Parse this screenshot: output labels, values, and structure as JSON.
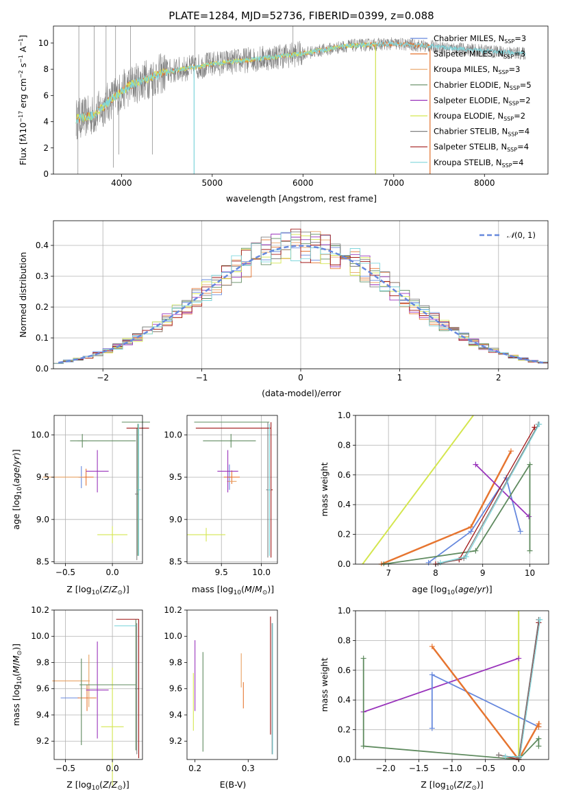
{
  "figure_title": "PLATE=1284, MJD=52736, FIBERID=0399, z=0.088",
  "colors": {
    "Chabrier MILES": "#6688dd",
    "Salpeter MILES": "#e67530",
    "Kroupa MILES": "#e8a060",
    "Chabrier ELODIE": "#5e8a5e",
    "Salpeter ELODIE": "#9933bb",
    "Kroupa ELODIE": "#d4e64f",
    "Chabrier STELIB": "#808080",
    "Salpeter STELIB": "#a01616",
    "Kroupa STELIB": "#7fd6dc",
    "gauss": "#6688dd"
  },
  "chart_data": [
    {
      "id": "spectrum",
      "type": "line",
      "xlabel": "wavelength [Angstrom, rest frame]",
      "ylabel": "Flux [f",
      "xlim": [
        3250,
        8700
      ],
      "ylim": [
        0,
        11.3
      ],
      "xticks": [
        4000,
        5000,
        6000,
        7000,
        8000
      ],
      "yticks": [
        0,
        2,
        4,
        6,
        8,
        10
      ],
      "grid": false,
      "legend_position": "upper right",
      "continuum": {
        "x": [
          3500,
          3700,
          3900,
          4100,
          4500,
          5000,
          5500,
          6000,
          6500,
          7000,
          7400,
          8000,
          8450
        ],
        "y": [
          4.2,
          4.5,
          5.8,
          6.8,
          7.8,
          8.4,
          8.8,
          9.2,
          9.8,
          9.95,
          9.75,
          9.4,
          9.2
        ]
      },
      "series": [
        {
          "name": "Chabrier MILES, N",
          "ssp": "=3"
        },
        {
          "name": "Salpeter MILES, N",
          "ssp": "=3"
        },
        {
          "name": "Kroupa MILES, N",
          "ssp": "=3"
        },
        {
          "name": "Chabrier ELODIE, N",
          "ssp": "=5"
        },
        {
          "name": "Salpeter ELODIE, N",
          "ssp": "=2"
        },
        {
          "name": "Kroupa ELODIE, N",
          "ssp": "=2"
        },
        {
          "name": "Chabrier STELIB, N",
          "ssp": "=4"
        },
        {
          "name": "Salpeter STELIB, N",
          "ssp": "=4"
        },
        {
          "name": "Kroupa STELIB, N",
          "ssp": "=4"
        }
      ]
    },
    {
      "id": "residuals",
      "type": "histogram",
      "xlabel": "(data-model)/error",
      "ylabel": "Normed distribution",
      "xlim": [
        -2.5,
        2.5
      ],
      "ylim": [
        0,
        0.48
      ],
      "xticks": [
        -2,
        -1,
        0,
        1,
        2
      ],
      "yticks": [
        0.0,
        0.1,
        0.2,
        0.3,
        0.4
      ],
      "grid": true,
      "legend_position": "upper right",
      "legend_label": "(0, 1)",
      "bin_width": 0.1,
      "bins_start": -2.5
    },
    {
      "id": "age_vs_Z",
      "type": "errorbar",
      "xlabel": "Z [log",
      "ylabel": "age  [log",
      "xlim": [
        -0.62,
        0.32
      ],
      "ylim": [
        8.48,
        10.23
      ],
      "xticks": [
        -0.5,
        0.0
      ],
      "yticks": [
        8.5,
        9.0,
        9.5,
        10.0
      ],
      "grid": true,
      "points": [
        {
          "s": "Chabrier MILES",
          "x": -0.33,
          "y": 9.5,
          "xerr": 0.03,
          "yerr": 0.13
        },
        {
          "s": "Salpeter MILES",
          "x": -0.28,
          "y": 9.5,
          "xerr": 0.08,
          "yerr": 0.1
        },
        {
          "s": "Kroupa MILES",
          "x": -0.52,
          "y": 9.5,
          "xerr": 0.22,
          "yerr": 0.0
        },
        {
          "s": "Chabrier ELODIE",
          "x": -0.32,
          "y": 9.93,
          "xerr": 0.05,
          "yerr": 0.08
        },
        {
          "s": "Salpeter ELODIE",
          "x": -0.16,
          "y": 9.57,
          "xerr": 0.12,
          "yerr": 0.25
        },
        {
          "s": "Kroupa ELODIE",
          "x": -0.0,
          "y": 8.82,
          "xerr": 0.16,
          "yerr": 0.1
        },
        {
          "s": "Chabrier STELIB",
          "x": 0.26,
          "y": 9.3,
          "xerr": 0.02,
          "yerr": 0.78
        },
        {
          "s": "Salpeter STELIB",
          "x": 0.27,
          "y": 10.08,
          "xerr": 0.12,
          "yerr": 0.0
        },
        {
          "s": "Kroupa STELIB",
          "x": 0.28,
          "y": 9.35,
          "xerr": 0.02,
          "yerr": 0.78
        },
        {
          "s": "Chabrier ELODIE",
          "x": 0.25,
          "y": 10.15,
          "xerr": 0.15,
          "yerr": 0.0
        },
        {
          "s": "Chabrier ELODIE",
          "x": -0.1,
          "y": 9.93,
          "xerr": 0.35,
          "yerr": 0.0
        },
        {
          "s": "Chabrier ELODIE",
          "x": 0.27,
          "y": 9.35,
          "xerr": 0.0,
          "yerr": 0.78
        }
      ]
    },
    {
      "id": "age_vs_mass",
      "type": "errorbar",
      "xlabel": "mass [log",
      "ylabel": "",
      "xlim": [
        9.07,
        10.2
      ],
      "ylim": [
        8.48,
        10.23
      ],
      "xticks": [
        9.5,
        10.0
      ],
      "yticks": [
        8.5,
        9.0,
        9.5,
        10.0
      ],
      "grid": true,
      "points": [
        {
          "s": "Chabrier MILES",
          "x": 9.6,
          "y": 9.5,
          "xerr": 0.02,
          "yerr": 0.15
        },
        {
          "s": "Salpeter MILES",
          "x": 9.63,
          "y": 9.5,
          "xerr": 0.1,
          "yerr": 0.08
        },
        {
          "s": "Kroupa MILES",
          "x": 9.63,
          "y": 9.45,
          "xerr": 0.06,
          "yerr": 0.0
        },
        {
          "s": "Chabrier ELODIE",
          "x": 9.62,
          "y": 9.93,
          "xerr": 0.02,
          "yerr": 0.08
        },
        {
          "s": "Salpeter ELODIE",
          "x": 9.58,
          "y": 9.57,
          "xerr": 0.13,
          "yerr": 0.25
        },
        {
          "s": "Kroupa ELODIE",
          "x": 9.31,
          "y": 8.82,
          "xerr": 0.24,
          "yerr": 0.08
        },
        {
          "s": "Chabrier STELIB",
          "x": 10.08,
          "y": 9.35,
          "xerr": 0.02,
          "yerr": 0.8
        },
        {
          "s": "Salpeter STELIB",
          "x": 10.12,
          "y": 9.35,
          "xerr": 0.02,
          "yerr": 0.8
        },
        {
          "s": "Salpeter STELIB",
          "x": 9.65,
          "y": 10.08,
          "xerr": 0.47,
          "yerr": 0.0
        },
        {
          "s": "Kroupa STELIB",
          "x": 10.1,
          "y": 9.35,
          "xerr": 0.02,
          "yerr": 0.78
        },
        {
          "s": "Chabrier ELODIE",
          "x": 9.63,
          "y": 10.15,
          "xerr": 0.47,
          "yerr": 0.0
        },
        {
          "s": "Chabrier ELODIE",
          "x": 9.6,
          "y": 9.93,
          "xerr": 0.33,
          "yerr": 0.0
        }
      ]
    },
    {
      "id": "weight_vs_age",
      "type": "line",
      "xlabel": "age  [log",
      "ylabel": "mass weight",
      "xlim": [
        6.3,
        10.4
      ],
      "ylim": [
        0,
        1
      ],
      "xticks": [
        7,
        8,
        9,
        10
      ],
      "yticks": [
        0.0,
        0.2,
        0.4,
        0.6,
        0.8,
        1.0
      ],
      "grid": true,
      "series": [
        {
          "s": "Kroupa ELODIE",
          "x": [
            6.45,
            8.8
          ],
          "y": [
            0.0,
            1.0
          ],
          "w": 2,
          "marker": false
        },
        {
          "s": "Salpeter MILES",
          "x": [
            6.85,
            8.75,
            9.6
          ],
          "y": [
            0.0,
            0.25,
            0.76
          ],
          "w": 2.5
        },
        {
          "s": "Chabrier MILES",
          "x": [
            7.85,
            8.75,
            9.5,
            9.8
          ],
          "y": [
            0.01,
            0.22,
            0.58,
            0.22
          ],
          "w": 1.8
        },
        {
          "s": "Salpeter ELODIE",
          "x": [
            8.85,
            9.98
          ],
          "y": [
            0.67,
            0.32
          ],
          "w": 1.8
        },
        {
          "s": "Chabrier ELODIE",
          "x": [
            6.9,
            8.85,
            10.0,
            10.0
          ],
          "y": [
            0.0,
            0.09,
            0.67,
            0.09
          ],
          "w": 1.8
        },
        {
          "s": "Salpeter STELIB",
          "x": [
            8.0,
            8.5,
            10.1
          ],
          "y": [
            0.0,
            0.03,
            0.92
          ],
          "w": 1.3
        },
        {
          "s": "Chabrier STELIB",
          "x": [
            8.05,
            8.6,
            10.18
          ],
          "y": [
            0.0,
            0.04,
            0.94
          ],
          "w": 1.3
        },
        {
          "s": "Kroupa STELIB",
          "x": [
            8.1,
            8.65,
            10.2
          ],
          "y": [
            0.01,
            0.05,
            0.94
          ],
          "w": 1.3
        }
      ]
    },
    {
      "id": "mass_vs_Z",
      "type": "errorbar",
      "xlabel": "Z [log",
      "ylabel": "mass [log",
      "xlim": [
        -0.62,
        0.32
      ],
      "ylim": [
        9.06,
        10.2
      ],
      "xticks": [
        -0.5,
        0.0
      ],
      "yticks": [
        9.2,
        9.4,
        9.6,
        9.8,
        10.0,
        10.2
      ],
      "grid": true,
      "points": [
        {
          "s": "Chabrier MILES",
          "x": -0.45,
          "y": 9.53,
          "xerr": 0.1,
          "yerr": 0.0
        },
        {
          "s": "Salpeter MILES",
          "x": -0.27,
          "y": 9.53,
          "xerr": 0.1,
          "yerr": 0.1
        },
        {
          "s": "Kroupa MILES",
          "x": -0.44,
          "y": 9.66,
          "xerr": 0.2,
          "yerr": 0.0
        },
        {
          "s": "Kroupa MILES",
          "x": -0.25,
          "y": 9.66,
          "xerr": 0.0,
          "yerr": 0.2
        },
        {
          "s": "Chabrier ELODIE",
          "x": -0.33,
          "y": 9.5,
          "xerr": 0.0,
          "yerr": 0.33
        },
        {
          "s": "Salpeter ELODIE",
          "x": -0.16,
          "y": 9.59,
          "xerr": 0.12,
          "yerr": 0.37
        },
        {
          "s": "Kroupa ELODIE",
          "x": -0.0,
          "y": 9.31,
          "xerr": 0.12,
          "yerr": 0.45
        },
        {
          "s": "Chabrier STELIB",
          "x": 0.26,
          "y": 9.6,
          "xerr": 0.02,
          "yerr": 0.5
        },
        {
          "s": "Salpeter STELIB",
          "x": 0.16,
          "y": 10.13,
          "xerr": 0.12,
          "yerr": 0.0
        },
        {
          "s": "Salpeter STELIB",
          "x": 0.28,
          "y": 9.6,
          "xerr": 0.0,
          "yerr": 0.53
        },
        {
          "s": "Kroupa STELIB",
          "x": 0.14,
          "y": 10.08,
          "xerr": 0.12,
          "yerr": 0.0
        },
        {
          "s": "Chabrier ELODIE",
          "x": -0.05,
          "y": 9.63,
          "xerr": 0.3,
          "yerr": 0.0
        },
        {
          "s": "Chabrier ELODIE",
          "x": 0.25,
          "y": 9.63,
          "xerr": 0.0,
          "yerr": 0.5
        }
      ]
    },
    {
      "id": "mass_vs_EBV",
      "type": "errorbar",
      "xlabel": "E(B-V)",
      "ylabel": "",
      "xlim": [
        0.185,
        0.355
      ],
      "ylim": [
        9.06,
        10.2
      ],
      "xticks": [
        0.2,
        0.3
      ],
      "yticks": [
        9.2,
        9.4,
        9.6,
        9.8,
        10.0,
        10.2
      ],
      "grid": false,
      "points": [
        {
          "s": "Kroupa ELODIE",
          "x": 0.197,
          "y": 9.5,
          "xerr": 0.0,
          "yerr": 0.22
        },
        {
          "s": "Salpeter ELODIE",
          "x": 0.2,
          "y": 9.7,
          "xerr": 0.0,
          "yerr": 0.27
        },
        {
          "s": "Chabrier ELODIE",
          "x": 0.215,
          "y": 9.5,
          "xerr": 0.0,
          "yerr": 0.38
        },
        {
          "s": "Kroupa MILES",
          "x": 0.287,
          "y": 9.74,
          "xerr": 0.0,
          "yerr": 0.13
        },
        {
          "s": "Salpeter MILES",
          "x": 0.291,
          "y": 9.55,
          "xerr": 0.0,
          "yerr": 0.1
        },
        {
          "s": "Salpeter STELIB",
          "x": 0.342,
          "y": 9.7,
          "xerr": 0.0,
          "yerr": 0.45
        },
        {
          "s": "Chabrier STELIB",
          "x": 0.345,
          "y": 9.6,
          "xerr": 0.0,
          "yerr": 0.5
        },
        {
          "s": "Kroupa STELIB",
          "x": 0.346,
          "y": 9.6,
          "xerr": 0.0,
          "yerr": 0.5
        }
      ]
    },
    {
      "id": "weight_vs_Z",
      "type": "line",
      "xlabel": "Z [log",
      "ylabel": "mass weight",
      "xlim": [
        -2.45,
        0.45
      ],
      "ylim": [
        0,
        1
      ],
      "xticks": [
        -2.0,
        -1.5,
        -1.0,
        -0.5,
        0.0
      ],
      "yticks": [
        0.0,
        0.2,
        0.4,
        0.6,
        0.8,
        1.0
      ],
      "grid": true,
      "series": [
        {
          "s": "Kroupa ELODIE",
          "x": [
            0.0,
            0.0
          ],
          "y": [
            0.0,
            1.0
          ],
          "w": 2,
          "marker": false
        },
        {
          "s": "Salpeter ELODIE",
          "x": [
            -2.33,
            0.0
          ],
          "y": [
            0.32,
            0.68
          ],
          "w": 1.8
        },
        {
          "s": "Chabrier MILES",
          "x": [
            -1.3,
            -1.3,
            0.3
          ],
          "y": [
            0.21,
            0.57,
            0.22
          ],
          "w": 1.8
        },
        {
          "s": "Salpeter MILES",
          "x": [
            -1.3,
            0.0,
            0.3,
            0.3
          ],
          "y": [
            0.76,
            0.0,
            0.24,
            0.22
          ],
          "w": 2.5
        },
        {
          "s": "Chabrier ELODIE",
          "x": [
            -2.33,
            -2.33,
            0.0,
            0.3,
            0.3
          ],
          "y": [
            0.68,
            0.09,
            0.0,
            0.14,
            0.09
          ],
          "w": 1.8
        },
        {
          "s": "Salpeter STELIB",
          "x": [
            -0.3,
            0.0,
            0.3
          ],
          "y": [
            0.03,
            0.0,
            0.92
          ],
          "w": 1.3
        },
        {
          "s": "Chabrier STELIB",
          "x": [
            -0.3,
            0.0,
            0.3
          ],
          "y": [
            0.03,
            0.01,
            0.94
          ],
          "w": 1.3
        },
        {
          "s": "Kroupa STELIB",
          "x": [
            -0.2,
            0.02,
            0.32
          ],
          "y": [
            0.02,
            0.02,
            0.94
          ],
          "w": 1.3
        }
      ]
    }
  ]
}
